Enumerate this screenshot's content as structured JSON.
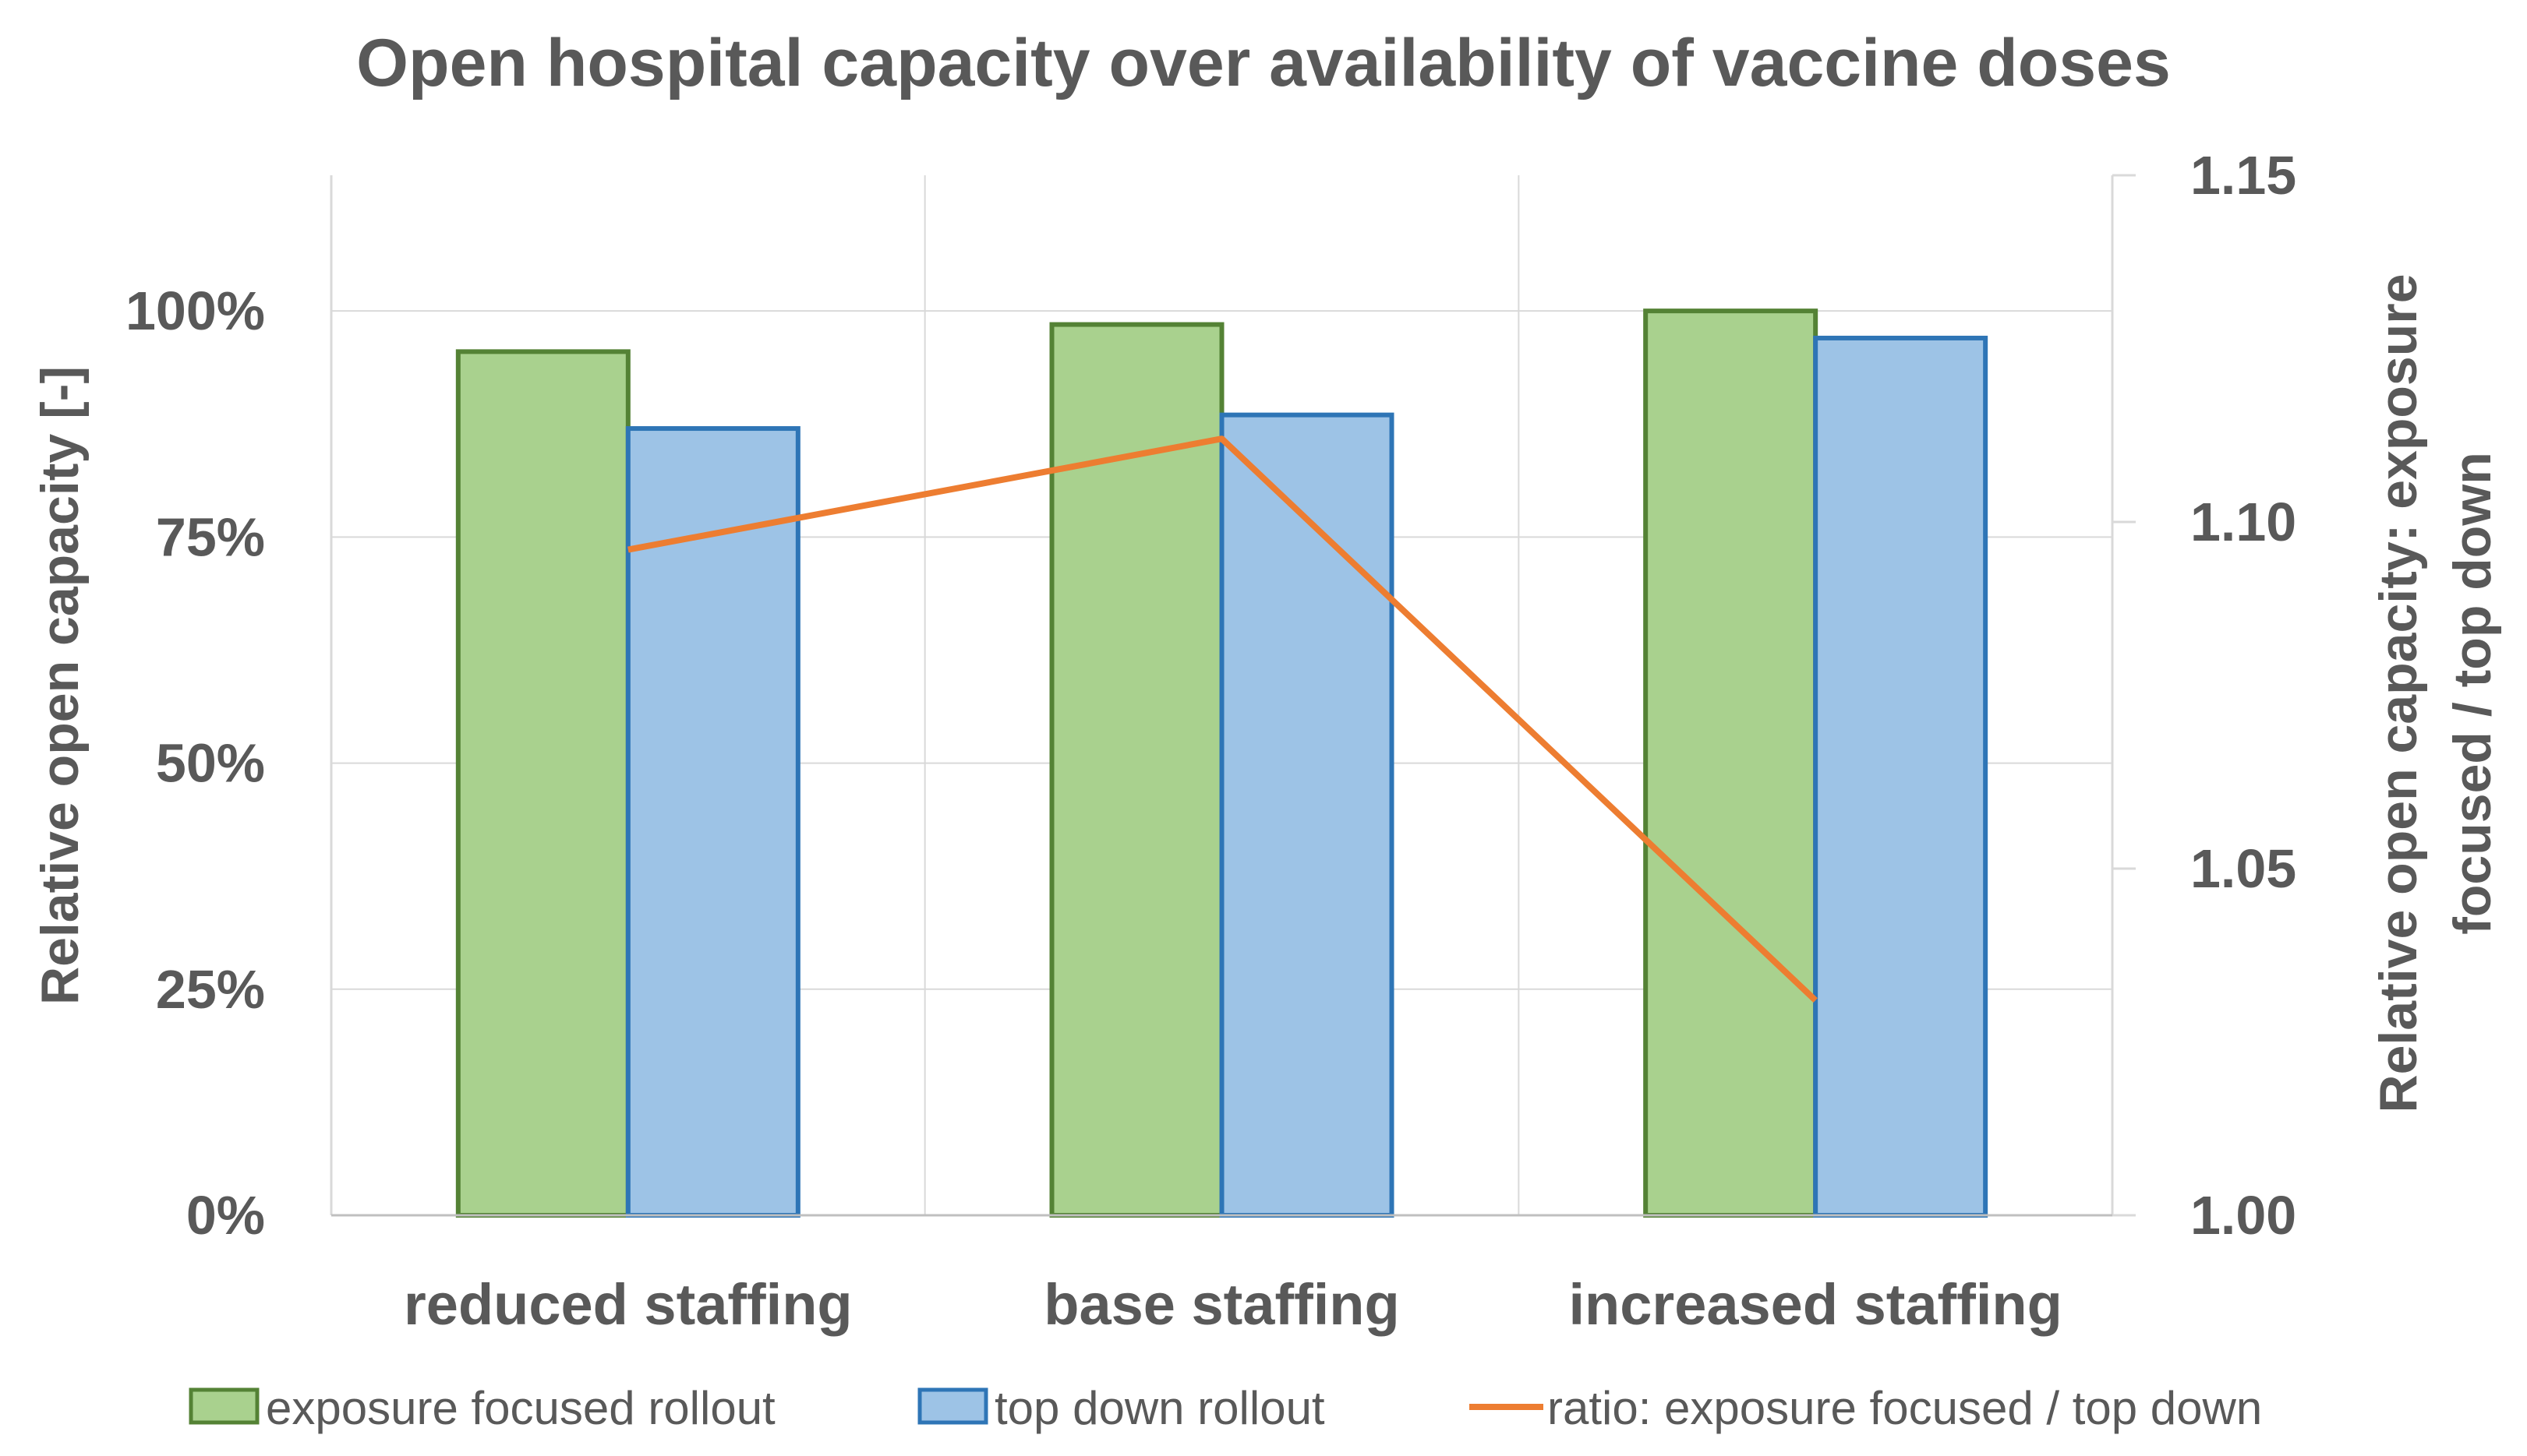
{
  "chart_data": {
    "type": "bar",
    "title": "Open hospital capacity over availability of vaccine doses",
    "categories": [
      "reduced staffing",
      "base staffing",
      "increased staffing"
    ],
    "series": [
      {
        "name": "exposure focused rollout",
        "kind": "bar",
        "axis": "left",
        "values": [
          95.5,
          98.5,
          100.0
        ],
        "fill": "#a9d18e",
        "stroke": "#548235"
      },
      {
        "name": "top down rollout",
        "kind": "bar",
        "axis": "left",
        "values": [
          87.0,
          88.5,
          97.0
        ],
        "fill": "#9dc3e6",
        "stroke": "#2e75b6"
      },
      {
        "name": "ratio: exposure focused / top down",
        "kind": "line",
        "axis": "right",
        "values": [
          1.096,
          1.112,
          1.031
        ],
        "stroke": "#ed7d31"
      }
    ],
    "left_axis": {
      "label": "Relative open capacity [-]",
      "min": 0,
      "max": 115,
      "ticks": [
        0,
        25,
        50,
        75,
        100
      ],
      "tick_labels": [
        "0%",
        "25%",
        "50%",
        "75%",
        "100%"
      ]
    },
    "right_axis": {
      "label_line1": "Relative open capacity: exposure",
      "label_line2": "focused / top down",
      "min": 1.0,
      "max": 1.15,
      "ticks": [
        1.0,
        1.05,
        1.1,
        1.15
      ],
      "tick_labels": [
        "1.00",
        "1.05",
        "1.10",
        "1.15"
      ]
    },
    "gridlines": true,
    "legend_position": "bottom"
  }
}
